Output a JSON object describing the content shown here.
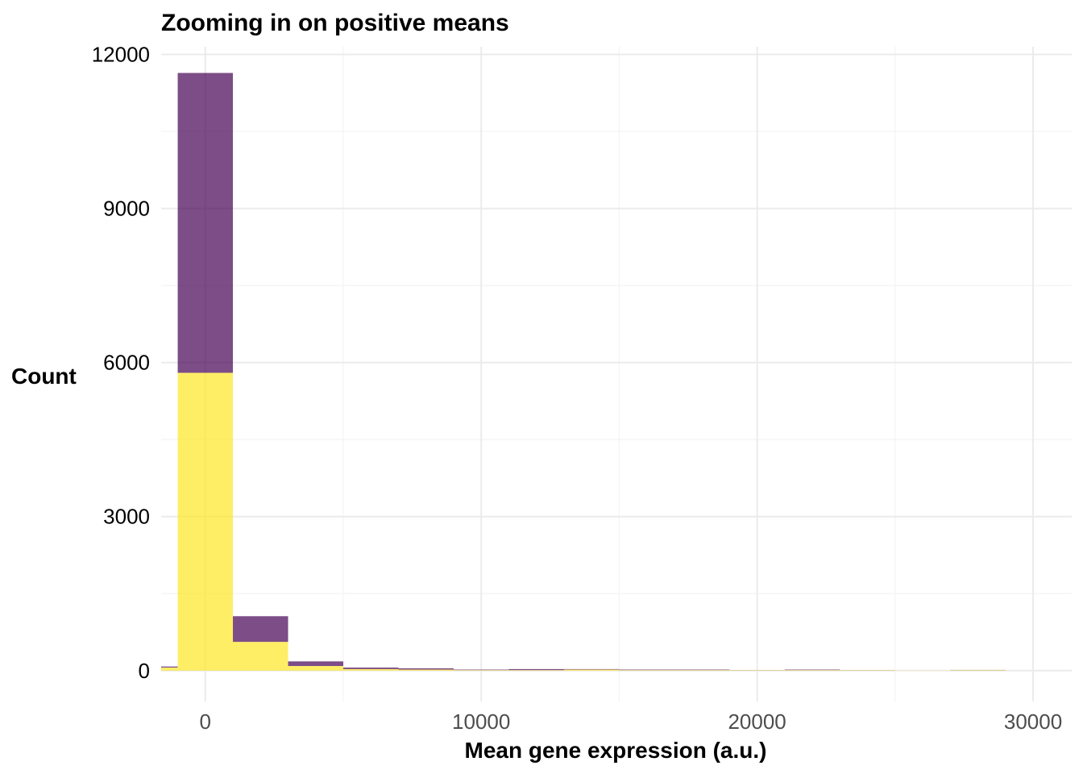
{
  "chart_data": {
    "type": "bar",
    "stacked": true,
    "title": "Zooming in on positive means",
    "xlabel": "Mean gene expression (a.u.)",
    "ylabel": "Count",
    "xlim": [
      -1600,
      31400
    ],
    "ylim": [
      -600,
      12150
    ],
    "x_ticks": [
      0,
      10000,
      20000,
      30000
    ],
    "x_tick_labels": [
      "0",
      "10000",
      "20000",
      "30000"
    ],
    "y_ticks": [
      0,
      3000,
      6000,
      9000,
      12000
    ],
    "y_tick_labels": [
      "0",
      "3000",
      "6000",
      "9000",
      "12000"
    ],
    "grid": true,
    "legend": "none",
    "bin_width": 2000,
    "bins": [
      {
        "x_start": -3000,
        "x_end": -1000,
        "bottom_value": 60,
        "top_value": 20
      },
      {
        "x_start": -1000,
        "x_end": 1000,
        "bottom_value": 5800,
        "top_value": 5840
      },
      {
        "x_start": 1000,
        "x_end": 3000,
        "bottom_value": 560,
        "top_value": 500
      },
      {
        "x_start": 3000,
        "x_end": 5000,
        "bottom_value": 90,
        "top_value": 90
      },
      {
        "x_start": 5000,
        "x_end": 7000,
        "bottom_value": 30,
        "top_value": 30
      },
      {
        "x_start": 7000,
        "x_end": 9000,
        "bottom_value": 20,
        "top_value": 25
      },
      {
        "x_start": 9000,
        "x_end": 11000,
        "bottom_value": 10,
        "top_value": 10
      },
      {
        "x_start": 11000,
        "x_end": 13000,
        "bottom_value": 10,
        "top_value": 20
      },
      {
        "x_start": 13000,
        "x_end": 15000,
        "bottom_value": 20,
        "top_value": 10
      },
      {
        "x_start": 15000,
        "x_end": 17000,
        "bottom_value": 10,
        "top_value": 10
      },
      {
        "x_start": 17000,
        "x_end": 19000,
        "bottom_value": 10,
        "top_value": 10
      },
      {
        "x_start": 19000,
        "x_end": 21000,
        "bottom_value": 8,
        "top_value": 2
      },
      {
        "x_start": 21000,
        "x_end": 23000,
        "bottom_value": 10,
        "top_value": 10
      },
      {
        "x_start": 23000,
        "x_end": 25000,
        "bottom_value": 8,
        "top_value": 2
      },
      {
        "x_start": 25000,
        "x_end": 27000,
        "bottom_value": 3,
        "top_value": 0
      },
      {
        "x_start": 27000,
        "x_end": 29000,
        "bottom_value": 10,
        "top_value": 3
      }
    ],
    "colors": {
      "bottom": "#fde725",
      "top": "#440154",
      "bottom_opacity": 0.7,
      "top_opacity": 0.7
    }
  }
}
